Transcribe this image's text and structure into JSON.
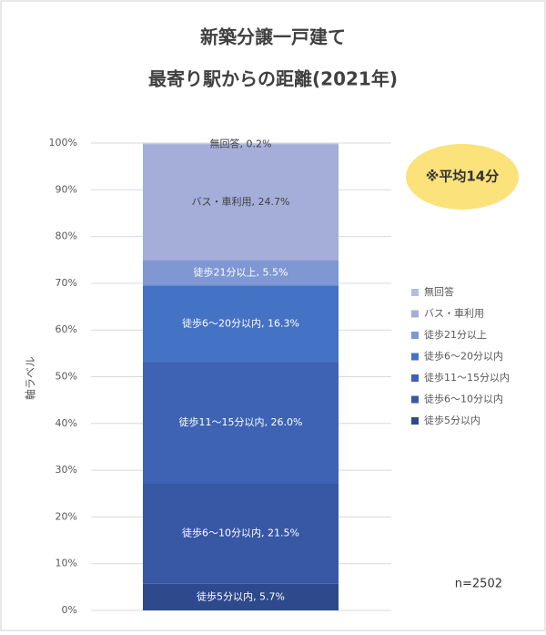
{
  "chart_data": {
    "type": "stacked_bar",
    "title": "新築分譲一戸建て",
    "subtitle": "最寄り駅からの距離(2021年)",
    "y_axis_label": "軸ラベル",
    "annotations": [
      "※平均14分",
      "n=2502"
    ],
    "categories": [
      null
    ],
    "series": [
      {
        "name": "徒歩5分以内",
        "color": "#2e4a8c",
        "values": [
          5.7
        ],
        "value_labels": [
          "徒歩5分以内, 5.7%"
        ]
      },
      {
        "name": "徒歩6～10分以内",
        "color": "#3858a5",
        "values": [
          21.5
        ],
        "value_labels": [
          "徒歩6～10分以内, 21.5%"
        ]
      },
      {
        "name": "徒歩11～15分以内",
        "color": "#3e63b4",
        "values": [
          26.0
        ],
        "value_labels": [
          "徒歩11～15分以内, 26.0%"
        ]
      },
      {
        "name": "徒歩6～20分以内",
        "color": "#4472c4",
        "values": [
          16.3
        ],
        "value_labels": [
          "徒歩6～20分以内, 16.3%"
        ]
      },
      {
        "name": "徒歩21分以上",
        "color": "#7f97d3",
        "values": [
          5.5
        ],
        "value_labels": [
          "徒歩21分以上, 5.5%"
        ]
      },
      {
        "name": "バス・車利用",
        "color": "#a4aed9",
        "values": [
          24.7
        ],
        "value_labels": [
          "バス・車利用, 24.7%"
        ]
      },
      {
        "name": "無回答",
        "color": "#b5bde2",
        "values": [
          0.2
        ],
        "value_labels": [
          "無回答, 0.2%"
        ]
      }
    ],
    "ylim": [
      0,
      100
    ],
    "yticks": [
      {
        "value": 0,
        "label": "0%"
      },
      {
        "value": 10,
        "label": "10%"
      },
      {
        "value": 20,
        "label": "20%"
      },
      {
        "value": 30,
        "label": "30%"
      },
      {
        "value": 40,
        "label": "40%"
      },
      {
        "value": 50,
        "label": "50%"
      },
      {
        "value": 60,
        "label": "60%"
      },
      {
        "value": 70,
        "label": "70%"
      },
      {
        "value": 80,
        "label": "80%"
      },
      {
        "value": 90,
        "label": "90%"
      },
      {
        "value": 100,
        "label": "100%"
      }
    ],
    "grid": true,
    "legend": "right"
  }
}
